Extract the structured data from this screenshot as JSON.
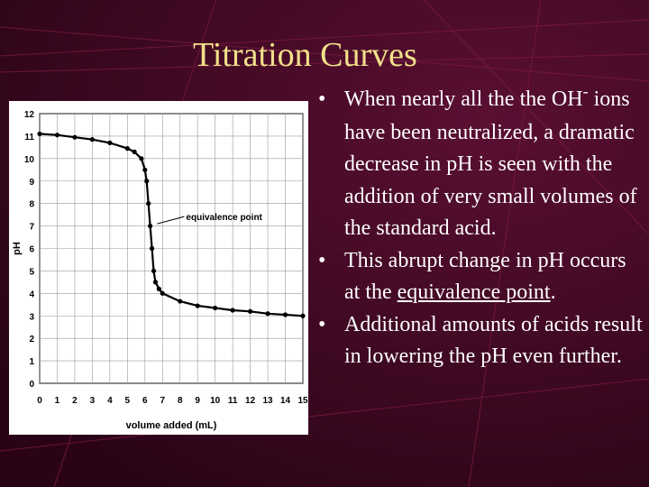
{
  "slide": {
    "title": "Titration Curves",
    "colors": {
      "background": "#3a0820",
      "title": "#f2e08a",
      "text": "#ffffff",
      "decor_lines": "#7a1a3e"
    }
  },
  "bullets": [
    {
      "pre": "When nearly all the the OH",
      "sup": "-",
      "post": " ions have been neutralized, a dramatic decrease in pH is seen with the addition of very small volumes of the standard acid."
    },
    {
      "pre": "This abrupt change in pH occurs at the ",
      "link": "equivalence point",
      "post": "."
    },
    {
      "pre": "Additional amounts of acids result in lowering the pH even further."
    }
  ],
  "chart_data": {
    "type": "scatter",
    "xlabel": "volume added (mL)",
    "ylabel": "pH",
    "xlim": [
      0,
      15
    ],
    "ylim": [
      0,
      12
    ],
    "xticks": [
      "0",
      "1",
      "2",
      "3",
      "4",
      "5",
      "6",
      "7",
      "8",
      "9",
      "10",
      "11",
      "12",
      "13",
      "14",
      "15"
    ],
    "yticks": [
      "0",
      "1",
      "2",
      "3",
      "4",
      "5",
      "6",
      "7",
      "8",
      "9",
      "10",
      "11",
      "12"
    ],
    "grid": true,
    "annotation": {
      "label": "equivalence point",
      "x": 6.7,
      "y": 7.1
    },
    "series": [
      {
        "points": [
          [
            0,
            11.1
          ],
          [
            1,
            11.05
          ],
          [
            2,
            10.95
          ],
          [
            3,
            10.85
          ],
          [
            4,
            10.7
          ],
          [
            5,
            10.45
          ],
          [
            5.4,
            10.3
          ],
          [
            5.8,
            10.0
          ],
          [
            6.0,
            9.5
          ],
          [
            6.1,
            9.0
          ],
          [
            6.2,
            8.0
          ],
          [
            6.3,
            7.0
          ],
          [
            6.4,
            6.0
          ],
          [
            6.5,
            5.0
          ],
          [
            6.6,
            4.5
          ],
          [
            6.8,
            4.2
          ],
          [
            7,
            4.0
          ],
          [
            8,
            3.65
          ],
          [
            9,
            3.45
          ],
          [
            10,
            3.35
          ],
          [
            11,
            3.25
          ],
          [
            12,
            3.2
          ],
          [
            13,
            3.1
          ],
          [
            14,
            3.05
          ],
          [
            15,
            3.0
          ]
        ]
      }
    ]
  }
}
